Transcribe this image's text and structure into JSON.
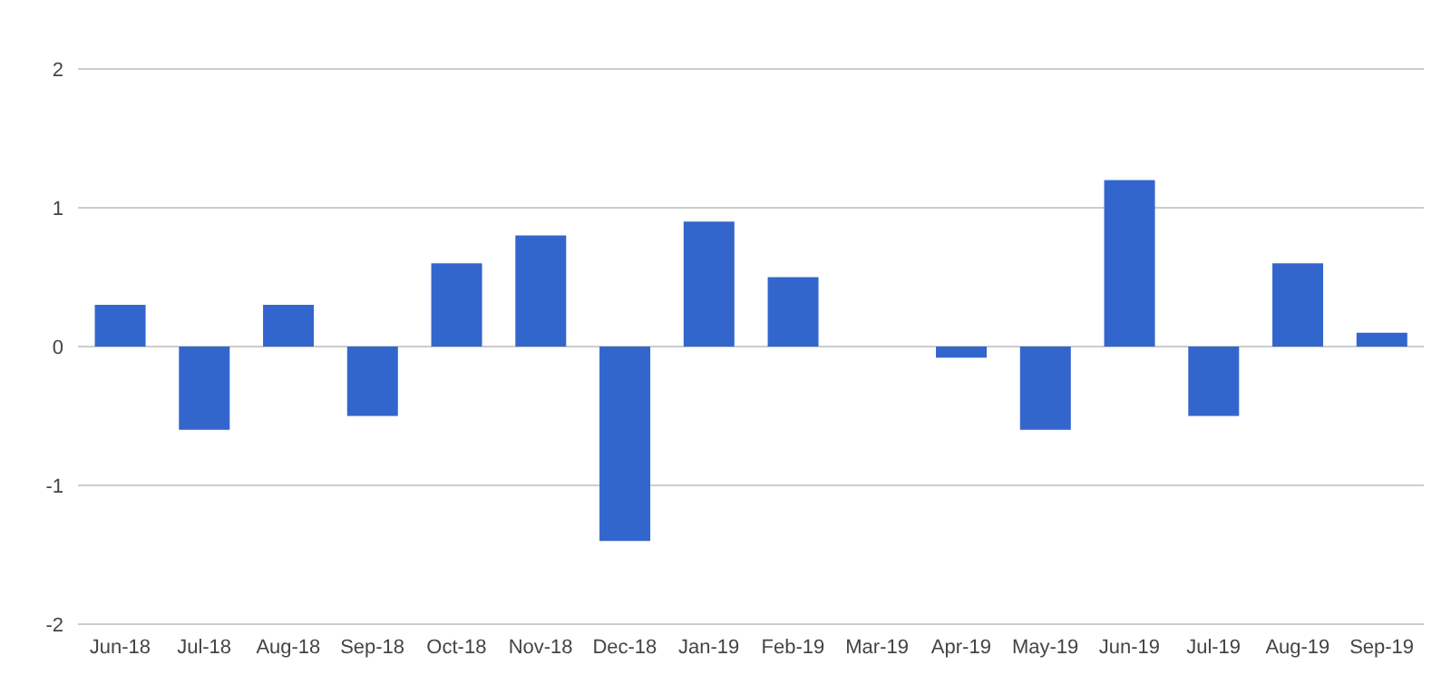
{
  "chart_data": {
    "type": "bar",
    "categories": [
      "Jun-18",
      "Jul-18",
      "Aug-18",
      "Sep-18",
      "Oct-18",
      "Nov-18",
      "Dec-18",
      "Jan-19",
      "Feb-19",
      "Mar-19",
      "Apr-19",
      "May-19",
      "Jun-19",
      "Jul-19",
      "Aug-19",
      "Sep-19"
    ],
    "values": [
      0.3,
      -0.6,
      0.3,
      -0.5,
      0.6,
      0.8,
      -1.4,
      0.9,
      0.5,
      0,
      -0.08,
      -0.6,
      1.2,
      -0.5,
      0.6,
      0.1
    ],
    "color": "#3366cc",
    "ylim": [
      -2,
      2
    ],
    "yticks": [
      -2,
      -1,
      0,
      1,
      2
    ],
    "grid": "y"
  }
}
